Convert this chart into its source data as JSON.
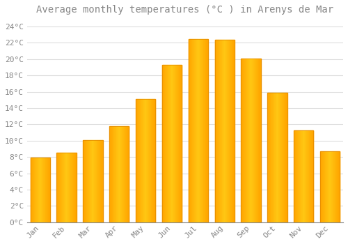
{
  "title": "Average monthly temperatures (°C ) in Arenys de Mar",
  "months": [
    "Jan",
    "Feb",
    "Mar",
    "Apr",
    "May",
    "Jun",
    "Jul",
    "Aug",
    "Sep",
    "Oct",
    "Nov",
    "Dec"
  ],
  "values": [
    7.9,
    8.5,
    10.1,
    11.8,
    15.1,
    19.3,
    22.5,
    22.4,
    20.1,
    15.9,
    11.3,
    8.7
  ],
  "bar_color_center": "#FFB833",
  "bar_color_edge": "#F08000",
  "background_color": "#FFFFFF",
  "grid_color": "#DDDDDD",
  "ylim": [
    0,
    25
  ],
  "yticks": [
    0,
    2,
    4,
    6,
    8,
    10,
    12,
    14,
    16,
    18,
    20,
    22,
    24
  ],
  "ytick_labels": [
    "0°C",
    "2°C",
    "4°C",
    "6°C",
    "8°C",
    "10°C",
    "12°C",
    "14°C",
    "16°C",
    "18°C",
    "20°C",
    "22°C",
    "24°C"
  ],
  "title_fontsize": 10,
  "tick_fontsize": 8,
  "font_family": "monospace",
  "tick_color": "#888888",
  "bar_width": 0.75
}
